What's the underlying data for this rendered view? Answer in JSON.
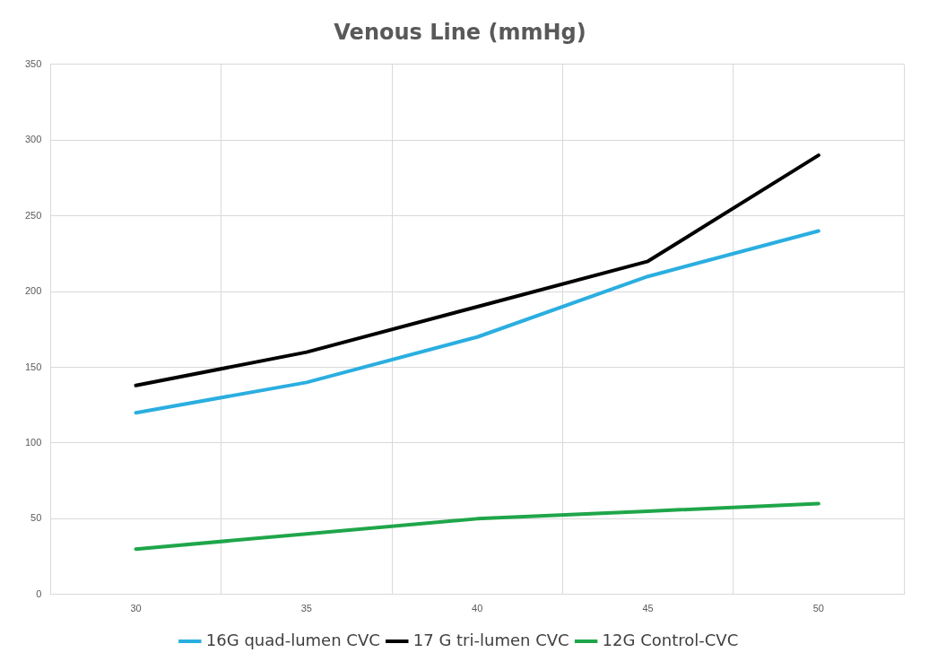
{
  "chart_data": {
    "type": "line",
    "title": "Venous Line (mmHg)",
    "categories": [
      "30",
      "35",
      "40",
      "45",
      "50"
    ],
    "series": [
      {
        "name": "16G quad-lumen CVC",
        "color": "#2aaee0",
        "values": [
          120,
          140,
          170,
          210,
          240
        ]
      },
      {
        "name": "17 G tri-lumen CVC",
        "color": "#000000",
        "values": [
          138,
          160,
          190,
          220,
          290
        ]
      },
      {
        "name": "12G Control-CVC",
        "color": "#1fa64a",
        "values": [
          30,
          40,
          50,
          55,
          60
        ]
      }
    ],
    "ylim": [
      0,
      350
    ],
    "yticks": [
      0,
      50,
      100,
      150,
      200,
      250,
      300,
      350
    ],
    "grid": true,
    "legend": "bottom",
    "marker": "none",
    "line_style": "solid"
  }
}
